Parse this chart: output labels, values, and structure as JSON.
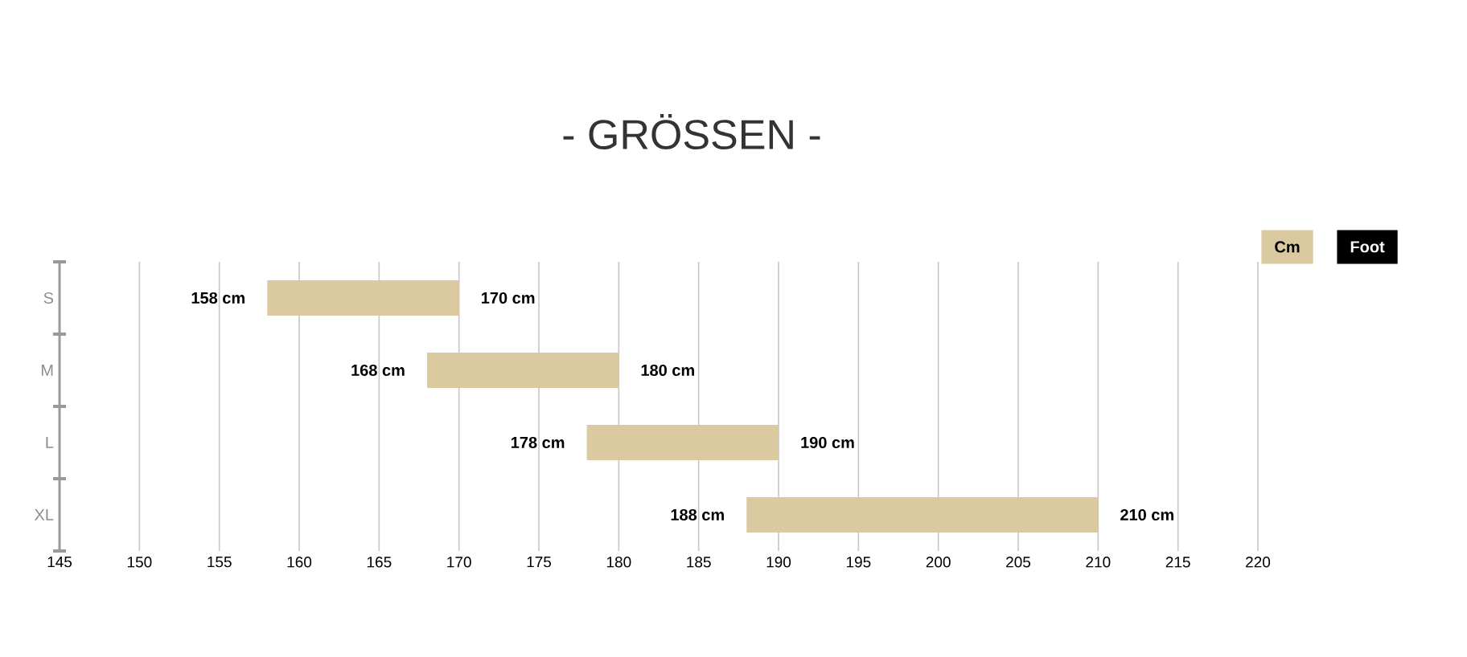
{
  "chart_data": {
    "type": "bar",
    "orientation": "horizontal",
    "title": "- GRÖSSEN -",
    "categories": [
      "S",
      "M",
      "L",
      "XL"
    ],
    "base": [
      158,
      168,
      178,
      188
    ],
    "values": [
      12,
      12,
      12,
      22
    ],
    "color": "#dbca9f",
    "xlim": [
      145,
      220
    ],
    "xticks": [
      145,
      150,
      155,
      160,
      165,
      170,
      175,
      180,
      185,
      190,
      195,
      200,
      205,
      210,
      215,
      220
    ],
    "grid": "x",
    "annotations": [
      {
        "text": "158 cm",
        "x": 158,
        "y": "S"
      },
      {
        "text": "170 cm",
        "x": 170,
        "y": "S"
      },
      {
        "text": "168 cm",
        "x": 168,
        "y": "M"
      },
      {
        "text": "180 cm",
        "x": 180,
        "y": "M"
      },
      {
        "text": "178 cm",
        "x": 178,
        "y": "L"
      },
      {
        "text": "190 cm",
        "x": 190,
        "y": "L"
      },
      {
        "text": "188 cm",
        "x": 188,
        "y": "XL"
      },
      {
        "text": "210 cm",
        "x": 210,
        "y": "XL"
      },
      "Cm",
      "Foot"
    ]
  }
}
